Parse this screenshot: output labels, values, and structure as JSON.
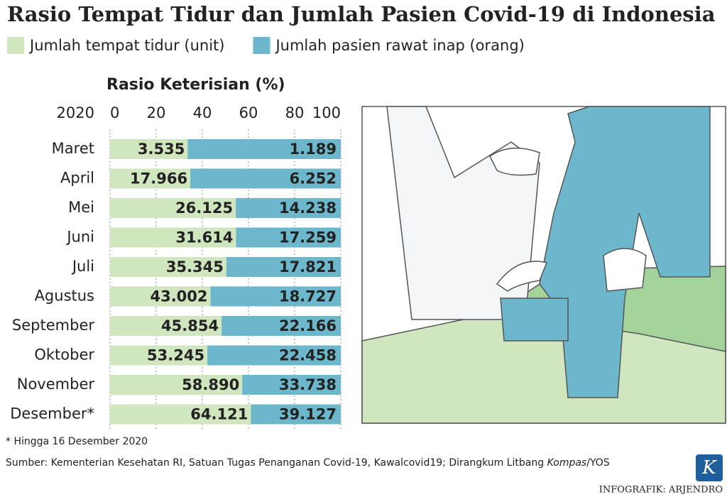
{
  "chart_data": {
    "type": "ratio-bar",
    "title": "Rasio Tempat Tidur dan Jumlah Pasien Covid-19 di Indonesia",
    "axis_title": "Rasio Keterisian (%)",
    "category_header": "2020",
    "categories": [
      "Maret",
      "April",
      "Mei",
      "Juni",
      "Juli",
      "Agustus",
      "September",
      "Oktober",
      "November",
      "Desember*"
    ],
    "series": [
      {
        "name": "Jumlah tempat tidur (unit)",
        "color": "#cfe6bf",
        "values": [
          3535,
          17966,
          26125,
          31614,
          35345,
          43002,
          45854,
          53245,
          58890,
          64121
        ],
        "value_labels": [
          "3.535",
          "17.966",
          "26.125",
          "31.614",
          "35.345",
          "43.002",
          "45.854",
          "53.245",
          "58.890",
          "64.121"
        ]
      },
      {
        "name": "Jumlah pasien rawat inap (orang)",
        "color": "#6cb7cb",
        "values": [
          1189,
          6252,
          14238,
          17259,
          17821,
          18727,
          22166,
          22458,
          33738,
          39127
        ],
        "value_labels": [
          "1.189",
          "6.252",
          "14.238",
          "17.259",
          "17.821",
          "18.727",
          "22.166",
          "22.458",
          "33.738",
          "39.127"
        ]
      }
    ],
    "xlim": [
      0,
      100
    ],
    "xticks": [
      0,
      20,
      40,
      60,
      80,
      100
    ],
    "footnote": "* Hingga 16 Desember 2020",
    "source": [
      "Sumber: Kementerian Kesehatan RI, Satuan Tugas Penanganan Covid-19, Kawalcovid19; Dirangkum Litbang ",
      "Kompas",
      "/YOS"
    ],
    "logo": "K",
    "credit": "INFOGRAFIK: ARJENDRO"
  }
}
